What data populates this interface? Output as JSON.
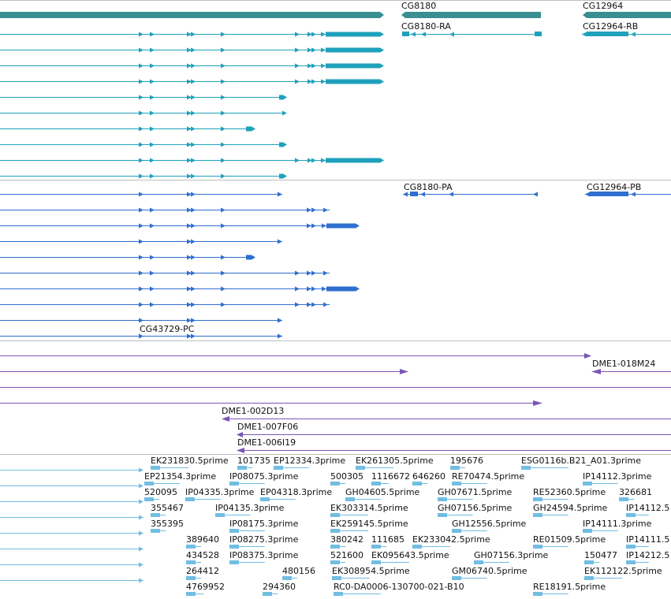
{
  "colors": {
    "gene": "#3a8f93",
    "rna": "#1fa1bb",
    "protein": "#2f6fcf",
    "clone": "#7a55b6",
    "est": "#72bde2",
    "separator": "#bfbfbf"
  },
  "gene_track": {
    "labels": [
      "CG8180",
      "CG12964"
    ]
  },
  "rna_track": {
    "labels": [
      "CG8180-RA",
      "CG12964-RB"
    ]
  },
  "protein_track": {
    "labels": [
      "CG8180-PA",
      "CG12964-PB",
      "CG43729-PC"
    ]
  },
  "clone_track": {
    "labels": [
      "DME1-018M24",
      "DME1-002D13",
      "DME1-007F06",
      "DME1-006I19"
    ]
  },
  "est_track": {
    "labels": [
      "EK231830.5prime",
      "101735",
      "EP12334.3prime",
      "EK261305.5prime",
      "195676",
      "ESG0116b.B21_A01.3prime",
      "EP21354.3prime",
      "IP08075.3prime",
      "500305",
      "1116672",
      "646260",
      "RE70474.5prime",
      "IP14112.3prime",
      "520095",
      "IP04335.3prime",
      "EP04318.3prime",
      "GH04605.5prime",
      "GH07671.5prime",
      "RE52360.5prime",
      "326681",
      "355467",
      "IP04135.3prime",
      "EK303314.5prime",
      "GH07156.5prime",
      "GH24594.5prime",
      "IP14112.5",
      "355395",
      "IP08175.3prime",
      "EK259145.5prime",
      "GH12556.5prime",
      "IP14111.3prime",
      "389640",
      "IP08275.3prime",
      "380242",
      "111685",
      "EK233042.5prime",
      "RE01509.5prime",
      "IP14111.5",
      "434528",
      "IP08375.3prime",
      "521600",
      "EK095643.5prime",
      "GH07156.3prime",
      "150477",
      "IP14212.5",
      "264412",
      "480156",
      "EK308954.5prime",
      "GM06740.5prime",
      "EK112122.5prime",
      "4769952",
      "294360",
      "RC0-DA0006-130700-021-B10",
      "RE18191.5prime"
    ]
  }
}
